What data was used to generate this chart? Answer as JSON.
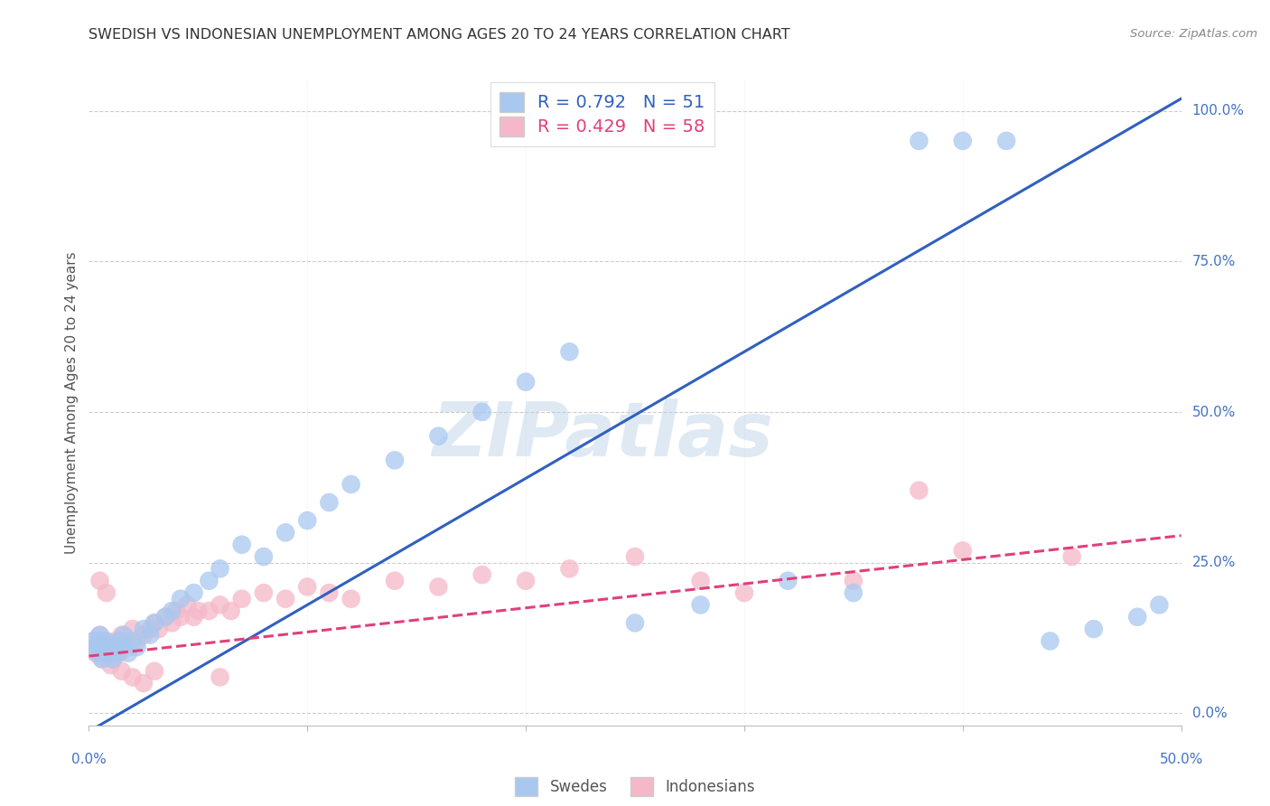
{
  "title": "SWEDISH VS INDONESIAN UNEMPLOYMENT AMONG AGES 20 TO 24 YEARS CORRELATION CHART",
  "source": "Source: ZipAtlas.com",
  "ylabel": "Unemployment Among Ages 20 to 24 years",
  "xmin": 0.0,
  "xmax": 0.5,
  "ymin": -0.02,
  "ymax": 1.05,
  "sweden_R": 0.792,
  "sweden_N": 51,
  "indonesia_R": 0.429,
  "indonesia_N": 58,
  "sweden_color": "#A8C8F0",
  "indonesia_color": "#F5B8C8",
  "sweden_line_color": "#3060C0",
  "indonesia_line_color": "#E0407A",
  "watermark_text": "ZIPatlas",
  "legend_swedes": "Swedes",
  "legend_indonesians": "Indonesians",
  "sw_line_x0": 0.0,
  "sw_line_x1": 0.5,
  "sw_line_y0": -0.03,
  "sw_line_y1": 1.02,
  "id_line_x0": 0.0,
  "id_line_x1": 0.5,
  "id_line_y0": 0.095,
  "id_line_y1": 0.295,
  "ytick_values": [
    0.0,
    0.25,
    0.5,
    0.75,
    1.0
  ],
  "ytick_labels": [
    "0.0%",
    "25.0%",
    "50.0%",
    "75.0%",
    "100.0%"
  ],
  "xtick_positions": [
    0.0,
    0.1,
    0.2,
    0.3,
    0.4,
    0.5
  ],
  "sweden_scatter_x": [
    0.002,
    0.003,
    0.004,
    0.005,
    0.005,
    0.006,
    0.007,
    0.008,
    0.008,
    0.009,
    0.01,
    0.011,
    0.012,
    0.013,
    0.014,
    0.015,
    0.016,
    0.018,
    0.02,
    0.022,
    0.025,
    0.028,
    0.03,
    0.035,
    0.038,
    0.042,
    0.048,
    0.055,
    0.06,
    0.07,
    0.08,
    0.09,
    0.1,
    0.11,
    0.12,
    0.14,
    0.16,
    0.18,
    0.2,
    0.22,
    0.25,
    0.28,
    0.32,
    0.35,
    0.38,
    0.4,
    0.42,
    0.44,
    0.46,
    0.48,
    0.49
  ],
  "sweden_scatter_y": [
    0.12,
    0.11,
    0.1,
    0.12,
    0.13,
    0.09,
    0.11,
    0.1,
    0.12,
    0.11,
    0.1,
    0.09,
    0.11,
    0.1,
    0.12,
    0.11,
    0.13,
    0.1,
    0.12,
    0.11,
    0.14,
    0.13,
    0.15,
    0.16,
    0.17,
    0.19,
    0.2,
    0.22,
    0.24,
    0.28,
    0.26,
    0.3,
    0.32,
    0.35,
    0.38,
    0.42,
    0.46,
    0.5,
    0.55,
    0.6,
    0.15,
    0.18,
    0.22,
    0.2,
    0.95,
    0.95,
    0.95,
    0.12,
    0.14,
    0.16,
    0.18
  ],
  "indonesia_scatter_x": [
    0.002,
    0.003,
    0.004,
    0.005,
    0.006,
    0.007,
    0.008,
    0.009,
    0.01,
    0.011,
    0.012,
    0.013,
    0.014,
    0.015,
    0.016,
    0.018,
    0.02,
    0.022,
    0.025,
    0.028,
    0.03,
    0.032,
    0.035,
    0.038,
    0.04,
    0.042,
    0.045,
    0.048,
    0.05,
    0.055,
    0.06,
    0.065,
    0.07,
    0.08,
    0.09,
    0.1,
    0.11,
    0.12,
    0.14,
    0.16,
    0.18,
    0.2,
    0.22,
    0.25,
    0.28,
    0.3,
    0.35,
    0.38,
    0.4,
    0.45,
    0.005,
    0.008,
    0.01,
    0.015,
    0.02,
    0.025,
    0.03,
    0.06
  ],
  "indonesia_scatter_y": [
    0.12,
    0.1,
    0.11,
    0.13,
    0.09,
    0.12,
    0.1,
    0.11,
    0.1,
    0.09,
    0.12,
    0.11,
    0.1,
    0.13,
    0.12,
    0.11,
    0.14,
    0.12,
    0.13,
    0.14,
    0.15,
    0.14,
    0.16,
    0.15,
    0.17,
    0.16,
    0.18,
    0.16,
    0.17,
    0.17,
    0.18,
    0.17,
    0.19,
    0.2,
    0.19,
    0.21,
    0.2,
    0.19,
    0.22,
    0.21,
    0.23,
    0.22,
    0.24,
    0.26,
    0.22,
    0.2,
    0.22,
    0.37,
    0.27,
    0.26,
    0.22,
    0.2,
    0.08,
    0.07,
    0.06,
    0.05,
    0.07,
    0.06
  ]
}
